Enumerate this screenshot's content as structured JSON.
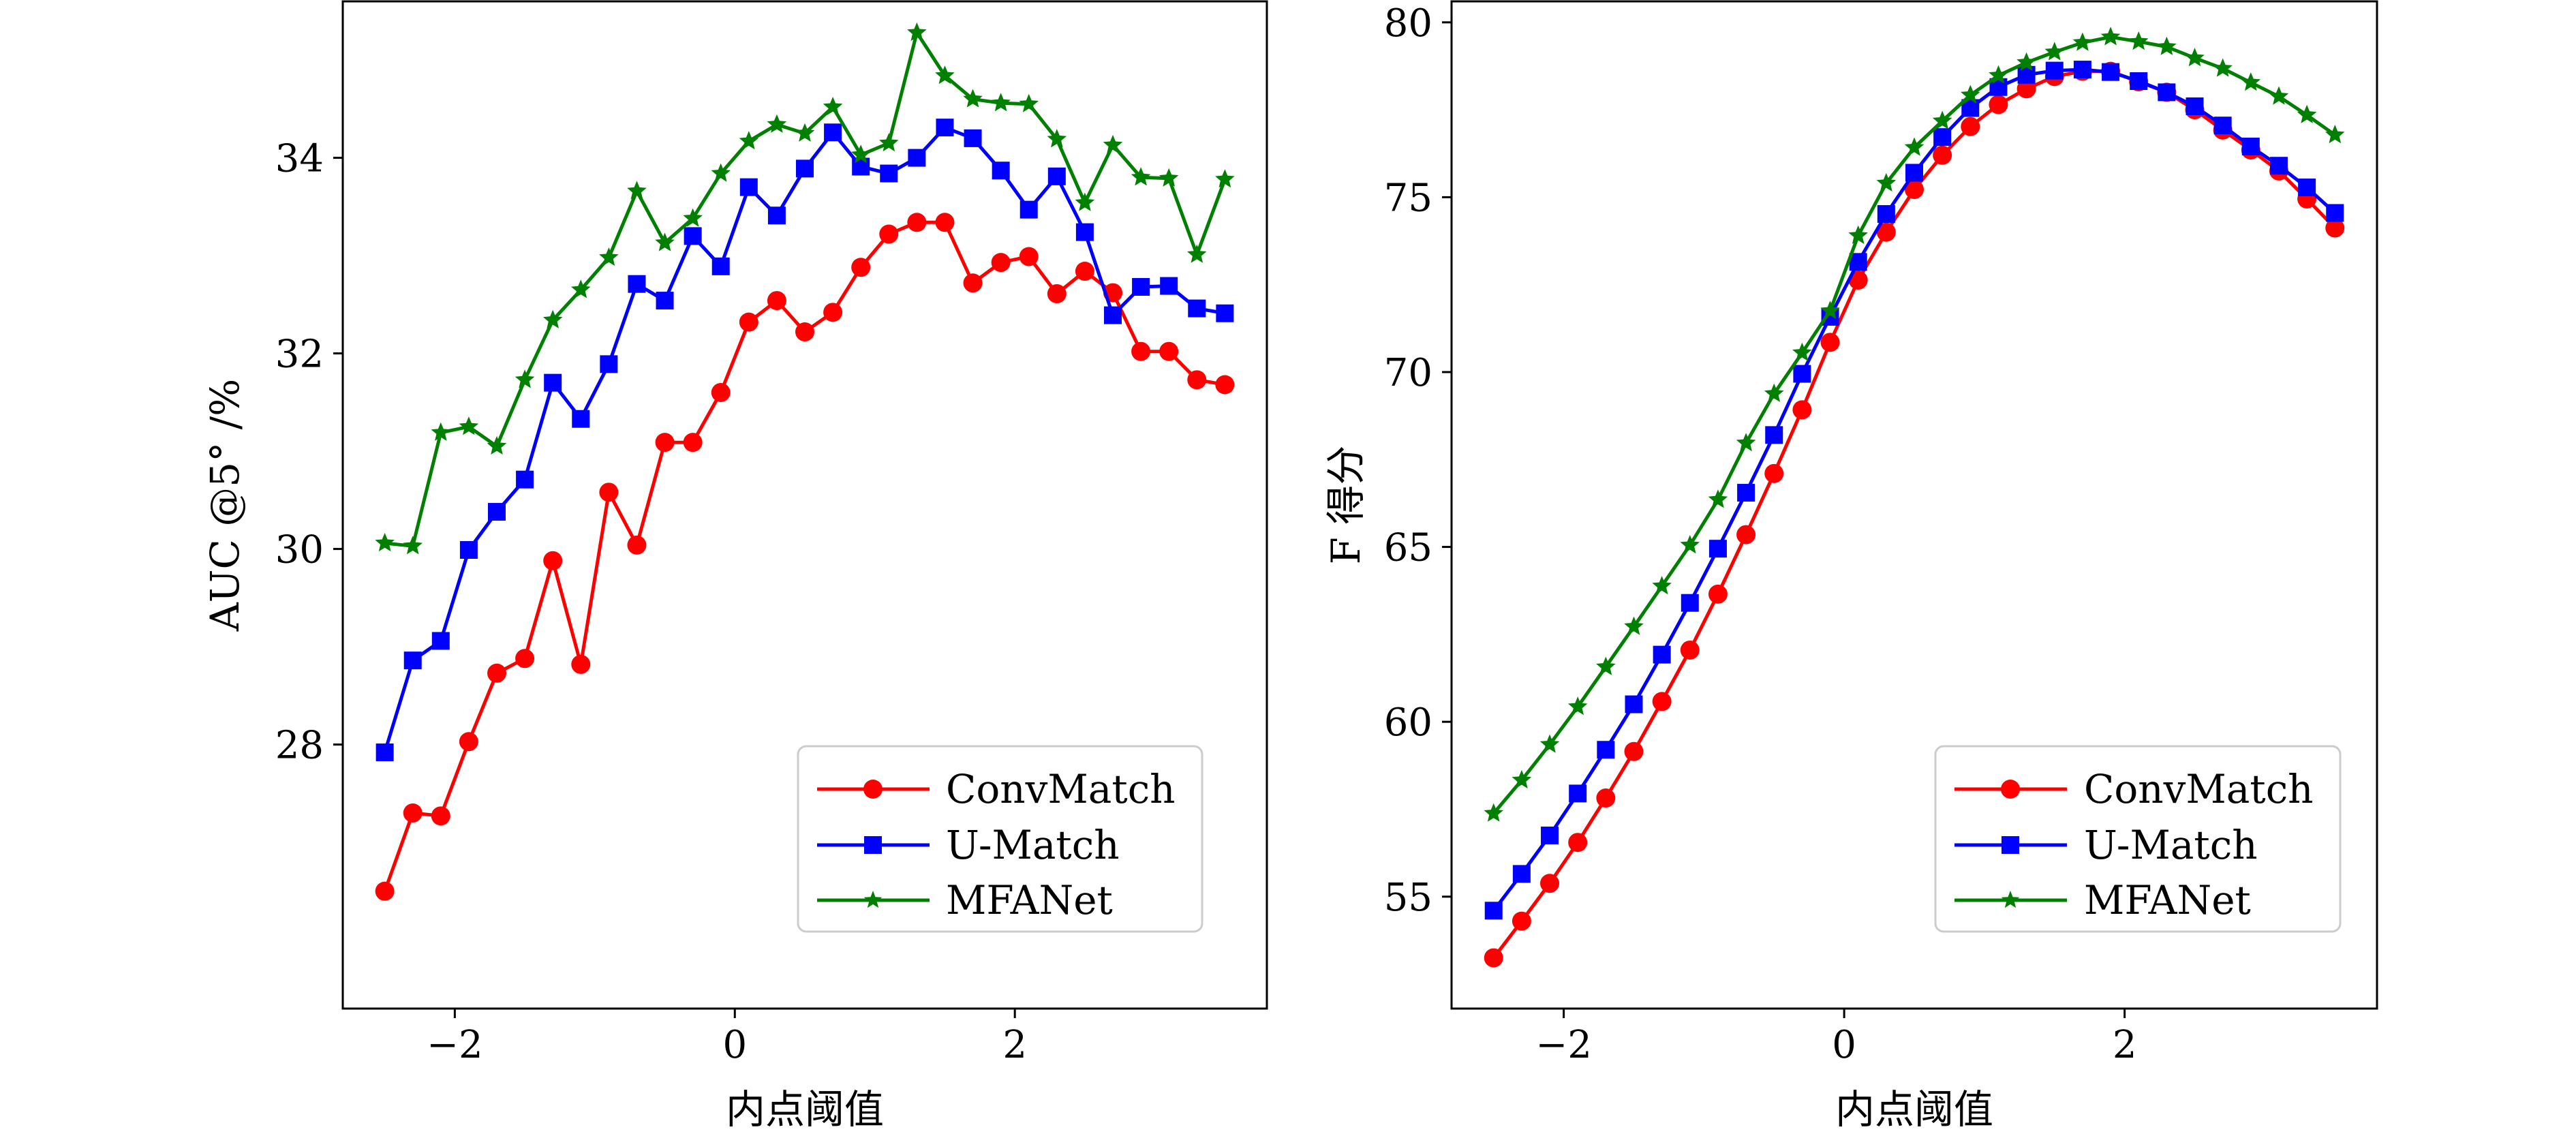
{
  "chart_data": [
    {
      "type": "line",
      "title": "",
      "xlabel": "内点阈值",
      "ylabel": "AUC @5° /%",
      "xlim": [
        -2.8,
        3.8
      ],
      "ylim": [
        25.3,
        35.6
      ],
      "xticks": [
        -2,
        0,
        2
      ],
      "xtick_labels": [
        "−2",
        "0",
        "2"
      ],
      "yticks": [
        28,
        30,
        32,
        34
      ],
      "ytick_labels": [
        "28",
        "30",
        "32",
        "34"
      ],
      "grid": false,
      "legend_position": "bottom-right",
      "x": [
        -2.5,
        -2.3,
        -2.1,
        -1.9,
        -1.7,
        -1.5,
        -1.3,
        -1.1,
        -0.9,
        -0.7,
        -0.5,
        -0.3,
        -0.1,
        0.1,
        0.3,
        0.5,
        0.7,
        0.9,
        1.1,
        1.3,
        1.5,
        1.7,
        1.9,
        2.1,
        2.3,
        2.5,
        2.7,
        2.9,
        3.1,
        3.3,
        3.5
      ],
      "series": [
        {
          "name": "ConvMatch",
          "color": "#ff0000",
          "marker": "circle",
          "values": [
            26.5,
            27.3,
            27.27,
            28.03,
            28.73,
            28.88,
            29.88,
            28.82,
            30.58,
            30.04,
            31.09,
            31.09,
            31.6,
            32.32,
            32.54,
            32.22,
            32.42,
            32.88,
            33.22,
            33.34,
            33.34,
            32.72,
            32.93,
            32.99,
            32.61,
            32.84,
            32.62,
            32.02,
            32.02,
            31.73,
            31.68
          ]
        },
        {
          "name": "U-Match",
          "color": "#0000ff",
          "marker": "square",
          "values": [
            27.92,
            28.86,
            29.06,
            29.99,
            30.38,
            30.71,
            31.7,
            31.33,
            31.89,
            32.71,
            32.54,
            33.2,
            32.89,
            33.7,
            33.41,
            33.89,
            34.26,
            33.91,
            33.84,
            34.0,
            34.31,
            34.2,
            33.87,
            33.47,
            33.81,
            33.24,
            32.39,
            32.68,
            32.69,
            32.46,
            32.41
          ]
        },
        {
          "name": "MFANet",
          "color": "#008000",
          "marker": "star",
          "values": [
            30.06,
            30.03,
            31.19,
            31.25,
            31.05,
            31.73,
            32.34,
            32.65,
            32.98,
            33.66,
            33.13,
            33.38,
            33.84,
            34.17,
            34.34,
            34.25,
            34.52,
            34.03,
            34.15,
            35.28,
            34.84,
            34.6,
            34.56,
            34.55,
            34.19,
            33.54,
            34.13,
            33.8,
            33.79,
            33.01,
            33.78
          ]
        }
      ]
    },
    {
      "type": "line",
      "title": "",
      "xlabel": "内点阈值",
      "ylabel": "F 得分",
      "xlim": [
        -2.8,
        3.8
      ],
      "ylim": [
        51.8,
        80.6
      ],
      "xticks": [
        -2,
        0,
        2
      ],
      "xtick_labels": [
        "−2",
        "0",
        "2"
      ],
      "yticks": [
        55,
        60,
        65,
        70,
        75,
        80
      ],
      "ytick_labels": [
        "55",
        "60",
        "65",
        "70",
        "75",
        "80"
      ],
      "grid": false,
      "legend_position": "bottom-right",
      "x": [
        -2.5,
        -2.3,
        -2.1,
        -1.9,
        -1.7,
        -1.5,
        -1.3,
        -1.1,
        -0.9,
        -0.7,
        -0.5,
        -0.3,
        -0.1,
        0.1,
        0.3,
        0.5,
        0.7,
        0.9,
        1.1,
        1.3,
        1.5,
        1.7,
        1.9,
        2.1,
        2.3,
        2.5,
        2.7,
        2.9,
        3.1,
        3.3,
        3.5
      ],
      "series": [
        {
          "name": "ConvMatch",
          "color": "#ff0000",
          "marker": "circle",
          "values": [
            53.25,
            54.3,
            55.38,
            56.55,
            57.82,
            59.15,
            60.58,
            62.05,
            63.65,
            65.35,
            67.1,
            68.92,
            70.85,
            72.63,
            74.0,
            75.22,
            76.2,
            77.02,
            77.65,
            78.1,
            78.45,
            78.6,
            78.6,
            78.3,
            78.0,
            77.5,
            76.92,
            76.35,
            75.75,
            74.95,
            74.12
          ]
        },
        {
          "name": "U-Match",
          "color": "#0000ff",
          "marker": "square",
          "values": [
            54.6,
            55.65,
            56.75,
            57.95,
            59.2,
            60.5,
            61.92,
            63.4,
            64.95,
            66.55,
            68.2,
            69.95,
            71.58,
            73.15,
            74.52,
            75.7,
            76.72,
            77.55,
            78.15,
            78.5,
            78.62,
            78.65,
            78.58,
            78.32,
            78.0,
            77.6,
            77.05,
            76.45,
            75.9,
            75.28,
            74.55
          ]
        },
        {
          "name": "MFANet",
          "color": "#008000",
          "marker": "star",
          "values": [
            57.38,
            58.33,
            59.35,
            60.43,
            61.57,
            62.72,
            63.88,
            65.05,
            66.35,
            67.97,
            69.38,
            70.55,
            71.75,
            73.9,
            75.4,
            76.42,
            77.18,
            77.92,
            78.48,
            78.85,
            79.15,
            79.42,
            79.58,
            79.45,
            79.3,
            78.98,
            78.68,
            78.28,
            77.88,
            77.35,
            76.78
          ]
        }
      ]
    }
  ]
}
